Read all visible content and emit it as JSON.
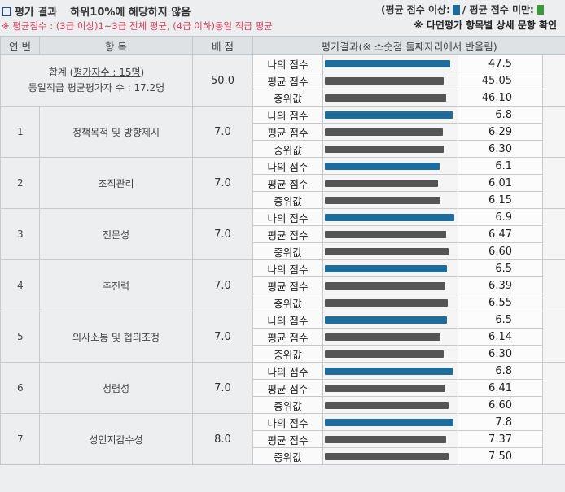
{
  "header": {
    "title": "평가 결과",
    "result": "하위10%에 해당하지 않음",
    "legend_above": "(평균 점수 이상:",
    "legend_mid": "/ 평균 점수 미만:",
    "note": "※ 평균점수 : (3급 이상)1~3급 전체 평균, (4급 이하)동일 직급 평균",
    "detail_link": "※ 다면평가 항목별 상세 문항 확인"
  },
  "colors": {
    "above": "#1e6c9c",
    "below": "#3c9a3c",
    "mine": "#1e6c9c",
    "other": "#555555"
  },
  "table": {
    "headers": {
      "num": "연 번",
      "item": "항 목",
      "points": "배 점",
      "result": "평가결과(※ 소숫점 둘째자리에서 반올림)"
    },
    "labels": {
      "mine": "나의 점수",
      "avg": "평균 점수",
      "median": "중위값"
    },
    "summary": {
      "line1_prefix": "합계 (",
      "line1_link": "평가자수 : 15명",
      "line1_suffix": ")",
      "line2": "동일직급 평균평가자 수 : 17.2명",
      "points": "50.0",
      "values": [
        "47.5",
        "45.05",
        "46.10"
      ]
    },
    "rows": [
      {
        "num": "1",
        "item": "정책목적 및 방향제시",
        "points": "7.0",
        "values": [
          "6.8",
          "6.29",
          "6.30"
        ]
      },
      {
        "num": "2",
        "item": "조직관리",
        "points": "7.0",
        "values": [
          "6.1",
          "6.01",
          "6.15"
        ]
      },
      {
        "num": "3",
        "item": "전문성",
        "points": "7.0",
        "values": [
          "6.9",
          "6.47",
          "6.60"
        ]
      },
      {
        "num": "4",
        "item": "추진력",
        "points": "7.0",
        "values": [
          "6.5",
          "6.39",
          "6.55"
        ]
      },
      {
        "num": "5",
        "item": "의사소통 및 협의조정",
        "points": "7.0",
        "values": [
          "6.5",
          "6.14",
          "6.30"
        ]
      },
      {
        "num": "6",
        "item": "청렴성",
        "points": "7.0",
        "values": [
          "6.8",
          "6.41",
          "6.60"
        ]
      },
      {
        "num": "7",
        "item": "성인지감수성",
        "points": "8.0",
        "values": [
          "7.8",
          "7.37",
          "7.50"
        ]
      }
    ]
  }
}
